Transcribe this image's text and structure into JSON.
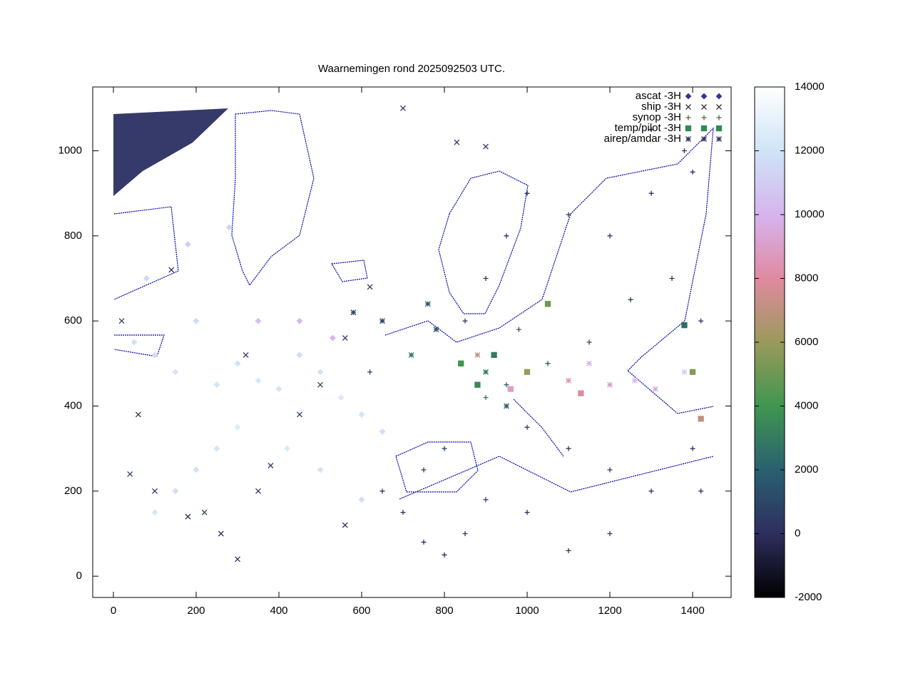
{
  "chart_data": {
    "type": "scatter",
    "title": "Waarnemingen rond 2025092503 UTC.",
    "xlim": [
      -50,
      1493
    ],
    "ylim": [
      -50,
      1150
    ],
    "xticks": [
      0,
      200,
      400,
      600,
      800,
      1000,
      1200,
      1400
    ],
    "yticks": [
      0,
      200,
      400,
      600,
      800,
      1000
    ],
    "cblim": [
      -2000,
      14000
    ],
    "cbticks": [
      -2000,
      0,
      2000,
      4000,
      6000,
      8000,
      10000,
      12000,
      14000
    ],
    "colormap": [
      "#000000",
      "#2e2e5e",
      "#2a6070",
      "#3f9650",
      "#9a9a5a",
      "#e08aa0",
      "#d6b4ee",
      "#cfe4f6",
      "#ffffff"
    ],
    "series": [
      {
        "name": "ascat -3H",
        "marker": "diamond",
        "color": "#333399",
        "x": [
          50,
          100,
          150,
          200,
          250,
          300,
          350,
          400,
          450,
          500,
          550,
          600,
          650,
          300,
          250,
          200,
          150,
          100,
          350,
          450,
          530,
          420,
          500,
          600,
          80,
          180,
          280
        ],
        "y": [
          550,
          520,
          480,
          600,
          450,
          500,
          460,
          440,
          520,
          480,
          420,
          380,
          340,
          350,
          300,
          250,
          200,
          150,
          600,
          600,
          560,
          300,
          250,
          180,
          700,
          780,
          820
        ],
        "z": [
          12000,
          11800,
          12200,
          11500,
          12000,
          11900,
          12300,
          12100,
          11700,
          12000,
          12400,
          12000,
          11800,
          12500,
          12200,
          12000,
          11800,
          12300,
          10500,
          10200,
          10000,
          12500,
          12000,
          11800,
          11500,
          11000,
          11300
        ]
      },
      {
        "name": "ship -3H",
        "marker": "cross",
        "color": "#333333",
        "x": [
          20,
          60,
          100,
          180,
          220,
          260,
          300,
          350,
          380,
          450,
          500,
          560,
          620,
          700,
          830,
          900,
          560,
          320,
          40,
          140
        ],
        "y": [
          600,
          380,
          200,
          140,
          150,
          100,
          40,
          200,
          260,
          380,
          450,
          120,
          680,
          1100,
          1020,
          1010,
          560,
          520,
          240,
          720
        ],
        "z": [
          500,
          0,
          300,
          0,
          500,
          200,
          0,
          400,
          0,
          500,
          1000,
          0,
          300,
          200,
          0,
          0,
          200,
          300,
          800,
          0
        ]
      },
      {
        "name": "synop -3H",
        "marker": "plus",
        "color": "#556b2f",
        "x": [
          850,
          900,
          950,
          1000,
          1100,
          1200,
          1300,
          1400,
          1350,
          1250,
          1150,
          1050,
          950,
          900,
          1000,
          1100,
          1200,
          1300,
          1400,
          800,
          750,
          700,
          750,
          800,
          850,
          900,
          1000,
          1100,
          1200,
          650,
          620,
          980,
          1420,
          1420,
          1380,
          1300
        ],
        "y": [
          600,
          700,
          800,
          900,
          850,
          800,
          900,
          950,
          700,
          650,
          550,
          500,
          450,
          420,
          350,
          300,
          250,
          200,
          300,
          300,
          250,
          150,
          80,
          50,
          100,
          180,
          150,
          60,
          100,
          200,
          480,
          580,
          600,
          200,
          1000,
          1050
        ],
        "z": [
          500,
          300,
          200,
          100,
          400,
          300,
          200,
          0,
          500,
          600,
          1000,
          1500,
          2000,
          3000,
          800,
          400,
          300,
          200,
          100,
          600,
          400,
          300,
          200,
          0,
          300,
          200,
          100,
          0,
          200,
          400,
          1000,
          1500,
          300,
          100,
          200,
          100
        ]
      },
      {
        "name": "temp/pilot -3H",
        "marker": "square",
        "color": "#2e8b57",
        "x": [
          920,
          1000,
          1050,
          880,
          1400,
          1420,
          1130,
          960,
          1380,
          840
        ],
        "y": [
          520,
          480,
          640,
          450,
          480,
          370,
          430,
          440,
          590,
          500
        ],
        "z": [
          3000,
          6000,
          5000,
          3500,
          5500,
          7000,
          8000,
          9000,
          2500,
          4000
        ]
      },
      {
        "name": "airep/amdar -3H",
        "marker": "star",
        "color": "#333366",
        "x": [
          950,
          900,
          880,
          780,
          760,
          1200,
          1260,
          1310,
          1380,
          1100,
          1150,
          650,
          580,
          720
        ],
        "y": [
          400,
          480,
          520,
          580,
          640,
          450,
          460,
          440,
          480,
          460,
          500,
          600,
          620,
          520
        ],
        "z": [
          2000,
          3000,
          7000,
          1500,
          1500,
          9000,
          10000,
          9500,
          11000,
          8500,
          10000,
          800,
          1000,
          3000
        ]
      }
    ]
  }
}
